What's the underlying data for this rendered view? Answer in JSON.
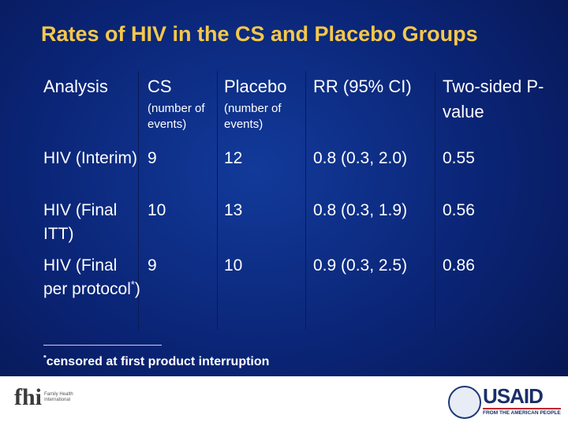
{
  "title": "Rates of HIV in the CS and Placebo Groups",
  "table": {
    "header": [
      "Analysis",
      "CS",
      "Placebo",
      "RR (95% CI)",
      "Two-sided P-value"
    ],
    "subheader": [
      "(number of events)",
      "(number of events)"
    ],
    "rows": [
      [
        "HIV (Interim)",
        9,
        12,
        "0.8 (0.3, 2.0)",
        0.55
      ],
      [
        "HIV (Final ITT)",
        10,
        13,
        "0.8 (0.3, 1.9)",
        0.56
      ],
      [
        {
          "text": "HIV (Final per protocol",
          "sup": "*",
          "after": ")"
        },
        9,
        10,
        "0.9 (0.3, 2.5)",
        0.86
      ]
    ]
  },
  "footnote": {
    "sup": "*",
    "text": "censored at first product interruption"
  },
  "logos": {
    "fhi": "fhi",
    "fhi_name": "Family Health International",
    "usaid": "USAID",
    "usaid_tagline": "FROM THE AMERICAN PEOPLE"
  }
}
